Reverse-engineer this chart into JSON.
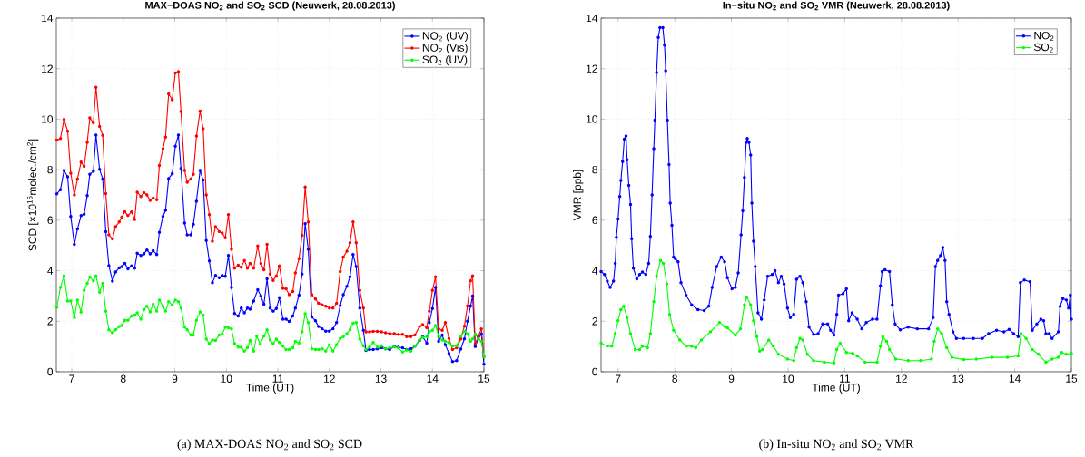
{
  "chart_data": [
    {
      "type": "line",
      "title": "MAX−DOAS NO$_{2}$ and SO$_{2}$ SCD (Neuwerk, 28.08.2013)",
      "xlabel": "Time (UT)",
      "ylabel": "SCD [×10$^{16}$molec./cm$^{2}$]",
      "xlim": [
        6.7,
        15
      ],
      "ylim": [
        0,
        14
      ],
      "xticks": [
        7,
        8,
        9,
        10,
        11,
        12,
        13,
        14,
        15
      ],
      "yticks": [
        0,
        2,
        4,
        6,
        8,
        10,
        12,
        14
      ],
      "grid": true,
      "legend": "top right",
      "marker": "circle",
      "line_style": "solid",
      "annotations": [
        "(a) MAX-DOAS NO$_{2}$ and SO$_{2}$ SCD"
      ],
      "series": [
        {
          "name": "NO$_{2}$ (UV)",
          "color": "#0000ff",
          "x": [
            6.71,
            6.78,
            6.85,
            6.92,
            6.98,
            7.05,
            7.11,
            7.18,
            7.24,
            7.3,
            7.35,
            7.42,
            7.47,
            7.54,
            7.6,
            7.66,
            7.72,
            7.79,
            7.85,
            7.92,
            7.97,
            8.03,
            8.09,
            8.16,
            8.22,
            8.27,
            8.34,
            8.4,
            8.46,
            8.52,
            8.58,
            8.65,
            8.7,
            8.77,
            8.82,
            8.88,
            8.95,
            9.01,
            9.07,
            9.12,
            9.19,
            9.24,
            9.31,
            9.36,
            9.42,
            9.49,
            9.55,
            9.61,
            9.67,
            9.73,
            9.79,
            9.86,
            9.92,
            9.98,
            10.04,
            10.1,
            10.16,
            10.23,
            10.29,
            10.35,
            10.41,
            10.46,
            10.53,
            10.61,
            10.67,
            10.73,
            10.79,
            10.85,
            10.91,
            10.97,
            11.03,
            11.1,
            11.16,
            11.22,
            11.29,
            11.34,
            11.41,
            11.47,
            11.53,
            11.59,
            11.66,
            11.73,
            11.79,
            11.86,
            11.93,
            12.0,
            12.07,
            12.14,
            12.21,
            12.27,
            12.34,
            12.4,
            12.46,
            12.52,
            12.59,
            12.66,
            12.71,
            12.78,
            12.85,
            12.93,
            13.01,
            13.09,
            13.17,
            13.26,
            13.34,
            13.42,
            13.5,
            13.58,
            13.66,
            13.75,
            13.81,
            13.89,
            13.94,
            14.0,
            14.06,
            14.12,
            14.19,
            14.25,
            14.32,
            14.39,
            14.47,
            14.55,
            14.62,
            14.68,
            14.74,
            14.78,
            14.83,
            14.89,
            14.95,
            15.0
          ],
          "values": [
            7.04,
            7.21,
            7.97,
            7.72,
            6.15,
            5.04,
            5.65,
            6.18,
            6.24,
            6.97,
            7.82,
            7.94,
            9.37,
            8.01,
            7.63,
            5.55,
            4.2,
            3.59,
            3.95,
            4.11,
            4.16,
            4.29,
            4.07,
            4.19,
            4.1,
            4.69,
            4.6,
            4.67,
            4.82,
            4.67,
            4.79,
            4.64,
            5.52,
            6.15,
            6.39,
            7.65,
            7.84,
            8.93,
            9.37,
            8.05,
            5.89,
            5.42,
            5.42,
            5.83,
            6.75,
            7.97,
            7.59,
            5.2,
            4.39,
            3.53,
            3.81,
            3.72,
            3.81,
            3.78,
            4.6,
            3.34,
            2.31,
            2.21,
            2.52,
            2.33,
            2.52,
            2.48,
            2.8,
            3.25,
            3.0,
            2.67,
            3.68,
            2.52,
            2.4,
            2.5,
            2.93,
            2.08,
            2.08,
            1.99,
            2.21,
            2.52,
            3.03,
            3.87,
            5.86,
            4.85,
            2.17,
            2.02,
            1.79,
            1.7,
            1.61,
            1.61,
            1.7,
            1.95,
            2.62,
            3.05,
            3.38,
            3.76,
            4.64,
            4.16,
            2.52,
            1.64,
            0.84,
            0.88,
            0.88,
            0.91,
            0.95,
            0.91,
            0.88,
            1.01,
            0.97,
            0.95,
            0.88,
            0.91,
            1.01,
            1.24,
            1.39,
            1.13,
            1.95,
            2.5,
            3.34,
            1.2,
            1.45,
            1.07,
            0.73,
            0.4,
            0.44,
            0.9,
            1.3,
            2.0,
            2.6,
            3.0,
            1.0,
            1.3,
            1.5,
            0.3
          ]
        },
        {
          "name": "NO$_{2}$ (Vis)",
          "color": "#ff0000",
          "x": [
            6.71,
            6.78,
            6.85,
            6.92,
            6.98,
            7.05,
            7.11,
            7.18,
            7.24,
            7.3,
            7.35,
            7.42,
            7.47,
            7.54,
            7.6,
            7.66,
            7.72,
            7.79,
            7.85,
            7.92,
            7.97,
            8.03,
            8.09,
            8.16,
            8.22,
            8.27,
            8.34,
            8.4,
            8.46,
            8.52,
            8.58,
            8.65,
            8.7,
            8.77,
            8.82,
            8.88,
            8.95,
            9.01,
            9.07,
            9.12,
            9.19,
            9.24,
            9.31,
            9.36,
            9.42,
            9.49,
            9.55,
            9.61,
            9.67,
            9.73,
            9.79,
            9.86,
            9.92,
            9.98,
            10.04,
            10.1,
            10.16,
            10.23,
            10.29,
            10.35,
            10.41,
            10.46,
            10.53,
            10.61,
            10.67,
            10.73,
            10.79,
            10.85,
            10.91,
            10.97,
            11.03,
            11.1,
            11.16,
            11.22,
            11.29,
            11.34,
            11.41,
            11.47,
            11.53,
            11.59,
            11.66,
            11.73,
            11.79,
            11.86,
            11.93,
            12.0,
            12.07,
            12.14,
            12.21,
            12.27,
            12.34,
            12.4,
            12.46,
            12.52,
            12.59,
            12.66,
            12.71,
            12.78,
            12.85,
            12.93,
            13.01,
            13.09,
            13.17,
            13.26,
            13.34,
            13.42,
            13.5,
            13.58,
            13.66,
            13.75,
            13.81,
            13.89,
            13.94,
            14.0,
            14.06,
            14.12,
            14.19,
            14.25,
            14.32,
            14.39,
            14.47,
            14.55,
            14.62,
            14.68,
            14.74,
            14.78,
            14.83,
            14.89,
            14.95,
            15.0
          ],
          "values": [
            9.17,
            9.23,
            9.99,
            9.52,
            7.86,
            7.0,
            7.63,
            8.3,
            8.13,
            9.08,
            10.05,
            9.86,
            11.26,
            9.71,
            9.36,
            7.05,
            5.42,
            5.26,
            5.74,
            5.93,
            6.12,
            6.34,
            6.18,
            6.33,
            6.03,
            7.11,
            6.94,
            7.09,
            7.0,
            6.78,
            6.87,
            6.81,
            8.17,
            8.83,
            9.29,
            11.0,
            10.77,
            11.83,
            11.88,
            10.3,
            7.97,
            7.5,
            7.63,
            7.82,
            9.33,
            10.32,
            9.62,
            7.0,
            6.22,
            5.17,
            5.74,
            5.55,
            5.49,
            5.3,
            6.22,
            4.85,
            4.1,
            4.22,
            4.14,
            4.41,
            4.1,
            4.29,
            4.1,
            4.98,
            4.29,
            4.04,
            5.04,
            3.87,
            3.62,
            3.79,
            4.19,
            3.3,
            3.28,
            3.05,
            3.18,
            3.91,
            4.48,
            5.4,
            7.31,
            5.93,
            3.05,
            2.88,
            2.71,
            2.65,
            2.59,
            2.52,
            2.52,
            2.71,
            3.97,
            4.54,
            4.77,
            5.11,
            5.93,
            5.11,
            3.22,
            2.52,
            1.58,
            1.58,
            1.6,
            1.6,
            1.58,
            1.54,
            1.51,
            1.51,
            1.48,
            1.48,
            1.39,
            1.39,
            1.45,
            1.79,
            1.87,
            1.74,
            2.4,
            3.22,
            3.76,
            1.7,
            1.64,
            1.95,
            1.32,
            0.88,
            0.95,
            1.3,
            1.8,
            2.6,
            3.6,
            3.8,
            1.1,
            1.4,
            1.7,
            0.6
          ]
        },
        {
          "name": "SO$_{2}$ (UV)",
          "color": "#00ff00",
          "x": [
            6.71,
            6.78,
            6.85,
            6.92,
            6.98,
            7.05,
            7.11,
            7.18,
            7.24,
            7.3,
            7.35,
            7.42,
            7.47,
            7.54,
            7.6,
            7.66,
            7.72,
            7.79,
            7.85,
            7.92,
            7.97,
            8.03,
            8.09,
            8.16,
            8.22,
            8.27,
            8.34,
            8.4,
            8.46,
            8.52,
            8.58,
            8.65,
            8.7,
            8.77,
            8.82,
            8.88,
            8.95,
            9.01,
            9.07,
            9.12,
            9.19,
            9.24,
            9.31,
            9.36,
            9.42,
            9.49,
            9.55,
            9.61,
            9.67,
            9.73,
            9.79,
            9.86,
            9.92,
            9.98,
            10.04,
            10.1,
            10.16,
            10.23,
            10.29,
            10.35,
            10.41,
            10.46,
            10.53,
            10.59,
            10.66,
            10.73,
            10.79,
            10.85,
            10.91,
            10.97,
            11.03,
            11.1,
            11.16,
            11.22,
            11.29,
            11.34,
            11.41,
            11.47,
            11.53,
            11.59,
            11.66,
            11.73,
            11.79,
            11.86,
            11.93,
            12.0,
            12.07,
            12.14,
            12.21,
            12.27,
            12.34,
            12.4,
            12.46,
            12.52,
            12.59,
            12.66,
            12.71,
            12.78,
            12.85,
            12.93,
            13.01,
            13.09,
            13.17,
            13.26,
            13.34,
            13.42,
            13.5,
            13.58,
            13.66,
            13.75,
            13.81,
            13.89,
            13.94,
            14.0,
            14.06,
            14.12,
            14.19,
            14.25,
            14.32,
            14.39,
            14.47,
            14.55,
            14.62,
            14.68,
            14.74,
            14.78,
            14.83,
            14.89,
            14.95,
            15.0
          ],
          "values": [
            2.55,
            3.34,
            3.8,
            2.8,
            2.8,
            2.14,
            2.84,
            2.36,
            3.22,
            3.5,
            3.75,
            3.6,
            3.8,
            3.15,
            3.5,
            2.4,
            1.66,
            1.54,
            1.66,
            1.79,
            1.83,
            2.04,
            2.04,
            2.21,
            2.24,
            2.33,
            2.08,
            2.46,
            2.59,
            2.37,
            2.67,
            2.4,
            2.84,
            2.59,
            2.4,
            2.77,
            2.65,
            2.84,
            2.77,
            2.52,
            1.77,
            1.66,
            1.45,
            1.45,
            2.04,
            2.37,
            2.24,
            1.29,
            1.11,
            1.26,
            1.24,
            1.45,
            1.49,
            1.77,
            1.74,
            1.7,
            1.11,
            0.98,
            0.97,
            0.82,
            0.95,
            1.24,
            0.82,
            1.41,
            1.1,
            1.41,
            1.66,
            1.26,
            1.11,
            1.29,
            1.16,
            1.01,
            0.88,
            0.88,
            0.95,
            1.2,
            1.13,
            1.58,
            2.3,
            1.95,
            0.91,
            0.88,
            0.88,
            0.91,
            0.82,
            1.07,
            0.82,
            1.07,
            1.32,
            1.39,
            1.51,
            1.66,
            1.92,
            1.95,
            1.29,
            1.03,
            0.88,
            0.98,
            1.16,
            0.98,
            1.03,
            0.91,
            0.95,
            0.98,
            0.95,
            0.78,
            0.86,
            0.82,
            1.01,
            1.26,
            1.36,
            1.39,
            1.58,
            1.64,
            1.83,
            1.41,
            1.26,
            1.2,
            1.16,
            1.01,
            1.03,
            1.4,
            1.6,
            1.5,
            1.2,
            1.3,
            1.5,
            1.3,
            1.2,
            0.6
          ]
        }
      ]
    },
    {
      "type": "line",
      "title": "In−situ NO$_{2}$ and SO$_{2}$ VMR (Neuwerk, 28.08.2013)",
      "xlabel": "Time (UT)",
      "ylabel": "VMR [ppb]",
      "xlim": [
        6.7,
        15
      ],
      "ylim": [
        0,
        14
      ],
      "xticks": [
        7,
        8,
        9,
        10,
        11,
        12,
        13,
        14,
        15
      ],
      "yticks": [
        0,
        2,
        4,
        6,
        8,
        10,
        12,
        14
      ],
      "grid": true,
      "legend": "top right",
      "marker": "circle",
      "line_style": "solid",
      "annotations": [
        "(b) In-situ NO$_{2}$ and SO$_{2}$ VMR"
      ],
      "series": [
        {
          "name": "NO$_{2}$",
          "color": "#0000ff",
          "x": [
            6.7,
            6.76,
            6.81,
            6.86,
            6.92,
            6.95,
            6.97,
            7.0,
            7.03,
            7.05,
            7.08,
            7.11,
            7.14,
            7.16,
            7.19,
            7.22,
            7.24,
            7.27,
            7.33,
            7.38,
            7.43,
            7.49,
            7.54,
            7.57,
            7.6,
            7.63,
            7.65,
            7.68,
            7.71,
            7.74,
            7.79,
            7.82,
            7.84,
            7.87,
            7.9,
            7.92,
            7.95,
            7.98,
            8.01,
            8.06,
            8.11,
            8.2,
            8.3,
            8.41,
            8.52,
            8.6,
            8.66,
            8.74,
            8.82,
            8.88,
            8.93,
            9.01,
            9.07,
            9.12,
            9.17,
            9.2,
            9.23,
            9.26,
            9.28,
            9.31,
            9.34,
            9.36,
            9.39,
            9.42,
            9.47,
            9.53,
            9.58,
            9.64,
            9.72,
            9.77,
            9.83,
            9.88,
            9.93,
            9.99,
            10.04,
            10.1,
            10.15,
            10.21,
            10.26,
            10.32,
            10.37,
            10.45,
            10.53,
            10.61,
            10.7,
            10.75,
            10.81,
            10.86,
            10.89,
            10.97,
            11.03,
            11.07,
            11.13,
            11.22,
            11.3,
            11.38,
            11.49,
            11.57,
            11.63,
            11.66,
            11.71,
            11.79,
            11.84,
            11.89,
            11.98,
            12.12,
            12.28,
            12.48,
            12.56,
            12.6,
            12.64,
            12.69,
            12.73,
            12.77,
            12.8,
            12.84,
            12.91,
            12.97,
            13.1,
            13.27,
            13.43,
            13.54,
            13.68,
            13.81,
            13.9,
            13.98,
            14.06,
            14.1,
            14.17,
            14.27,
            14.31,
            14.39,
            14.46,
            14.51,
            14.55,
            14.61,
            14.66,
            14.77,
            14.8,
            14.85,
            14.91,
            14.95,
            14.98,
            15.0
          ],
          "values": [
            3.97,
            3.85,
            3.59,
            3.34,
            3.59,
            4.29,
            5.32,
            6.05,
            6.94,
            7.57,
            8.32,
            9.21,
            9.33,
            8.39,
            7.38,
            6.62,
            5.27,
            4.1,
            3.68,
            3.85,
            3.95,
            3.85,
            4.29,
            5.36,
            7.0,
            8.83,
            9.96,
            11.85,
            13.24,
            13.62,
            13.62,
            12.93,
            11.92,
            9.96,
            8.2,
            6.68,
            5.8,
            4.54,
            4.48,
            4.35,
            3.53,
            3.03,
            2.65,
            2.46,
            2.42,
            2.59,
            3.34,
            4.16,
            4.54,
            4.35,
            3.72,
            3.28,
            3.34,
            3.91,
            5.42,
            6.37,
            7.69,
            9.08,
            9.23,
            9.08,
            8.58,
            6.68,
            5.17,
            4.16,
            2.33,
            2.08,
            2.84,
            3.78,
            3.85,
            4.0,
            3.53,
            3.78,
            3.47,
            2.52,
            2.14,
            2.27,
            3.66,
            3.78,
            3.53,
            2.77,
            1.77,
            1.48,
            1.51,
            1.89,
            1.89,
            1.64,
            1.45,
            2.27,
            3.03,
            3.09,
            3.28,
            2.02,
            2.33,
            2.08,
            1.7,
            1.95,
            2.08,
            2.08,
            3.4,
            3.97,
            4.04,
            3.97,
            2.65,
            1.89,
            1.66,
            1.77,
            1.7,
            1.7,
            2.14,
            4.16,
            4.41,
            4.6,
            4.92,
            4.41,
            2.77,
            2.27,
            1.58,
            1.32,
            1.32,
            1.32,
            1.32,
            1.51,
            1.64,
            1.58,
            1.68,
            1.51,
            1.39,
            3.53,
            3.63,
            3.56,
            1.64,
            1.89,
            2.08,
            2.02,
            1.51,
            1.51,
            1.32,
            1.58,
            2.58,
            2.9,
            2.84,
            2.52,
            3.03,
            2.08
          ]
        },
        {
          "name": "SO$_{2}$",
          "color": "#00ff00",
          "x": [
            6.7,
            6.81,
            6.89,
            6.95,
            7.0,
            7.05,
            7.1,
            7.16,
            7.22,
            7.3,
            7.38,
            7.43,
            7.52,
            7.57,
            7.63,
            7.68,
            7.75,
            7.8,
            7.86,
            7.91,
            7.98,
            8.09,
            8.2,
            8.3,
            8.37,
            8.47,
            8.63,
            8.79,
            8.88,
            8.93,
            9.07,
            9.16,
            9.23,
            9.27,
            9.34,
            9.39,
            9.45,
            9.5,
            9.55,
            9.66,
            9.74,
            9.83,
            9.99,
            10.1,
            10.15,
            10.21,
            10.26,
            10.34,
            10.45,
            10.64,
            10.81,
            10.86,
            10.92,
            11.03,
            11.14,
            11.22,
            11.36,
            11.57,
            11.63,
            11.67,
            11.74,
            11.79,
            11.9,
            12.12,
            12.34,
            12.53,
            12.58,
            12.64,
            12.71,
            12.8,
            12.89,
            13.1,
            13.32,
            13.6,
            13.87,
            14.06,
            14.11,
            14.2,
            14.31,
            14.42,
            14.55,
            14.66,
            14.77,
            14.83,
            14.91,
            15.0
          ],
          "values": [
            1.13,
            1.01,
            1.01,
            1.51,
            2.02,
            2.46,
            2.59,
            2.14,
            1.51,
            0.88,
            0.88,
            1.01,
            0.95,
            1.51,
            2.77,
            3.78,
            4.41,
            4.29,
            3.47,
            2.27,
            1.64,
            1.26,
            1.01,
            1.01,
            0.95,
            1.26,
            1.58,
            1.95,
            1.79,
            1.74,
            1.45,
            1.7,
            2.65,
            2.96,
            2.65,
            2.02,
            1.39,
            0.82,
            0.88,
            1.26,
            1.01,
            0.69,
            0.5,
            0.44,
            0.95,
            1.32,
            1.26,
            0.69,
            0.44,
            0.38,
            0.35,
            0.88,
            1.13,
            0.76,
            0.73,
            0.63,
            0.38,
            0.38,
            1.01,
            1.39,
            1.2,
            0.88,
            0.5,
            0.44,
            0.44,
            0.5,
            1.2,
            1.7,
            1.51,
            0.95,
            0.57,
            0.48,
            0.5,
            0.57,
            0.57,
            0.63,
            1.51,
            1.32,
            0.88,
            0.69,
            0.38,
            0.5,
            0.57,
            0.76,
            0.69,
            0.73
          ]
        }
      ]
    }
  ]
}
